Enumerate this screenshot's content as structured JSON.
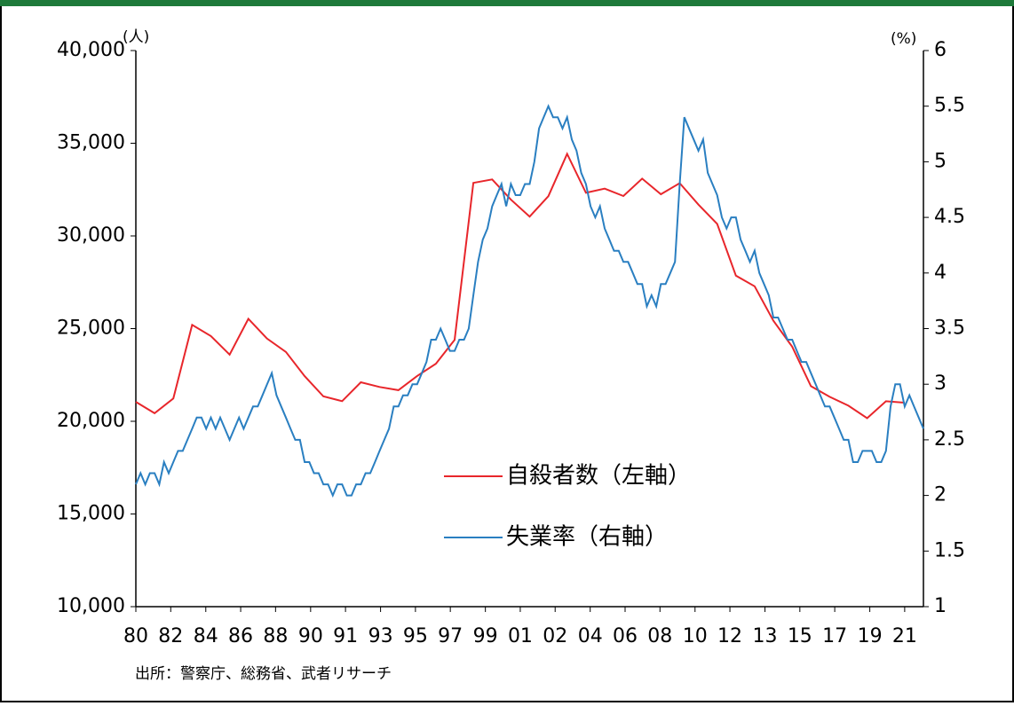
{
  "chart_data": {
    "type": "line",
    "y_unit": "(人)",
    "y2_unit": "(%)",
    "note": "出所：警察庁、総務省、武者リサーチ",
    "legend": "center",
    "xlim": [
      1980,
      2022
    ],
    "xticks": [
      {
        "value": 1980,
        "label": "80"
      },
      {
        "value": 1981.86,
        "label": "82"
      },
      {
        "value": 1983.73,
        "label": "84"
      },
      {
        "value": 1985.59,
        "label": "86"
      },
      {
        "value": 1987.45,
        "label": "88"
      },
      {
        "value": 1989.32,
        "label": "90"
      },
      {
        "value": 1991.18,
        "label": "91"
      },
      {
        "value": 1993.05,
        "label": "93"
      },
      {
        "value": 1994.91,
        "label": "95"
      },
      {
        "value": 1996.77,
        "label": "97"
      },
      {
        "value": 1998.64,
        "label": "99"
      },
      {
        "value": 2000.5,
        "label": "01"
      },
      {
        "value": 2002.36,
        "label": "02"
      },
      {
        "value": 2004.23,
        "label": "04"
      },
      {
        "value": 2006.09,
        "label": "06"
      },
      {
        "value": 2007.95,
        "label": "08"
      },
      {
        "value": 2009.82,
        "label": "10"
      },
      {
        "value": 2011.68,
        "label": "12"
      },
      {
        "value": 2013.55,
        "label": "13"
      },
      {
        "value": 2015.41,
        "label": "15"
      },
      {
        "value": 2017.27,
        "label": "17"
      },
      {
        "value": 2019.14,
        "label": "19"
      },
      {
        "value": 2021,
        "label": "21"
      }
    ],
    "ylim": [
      10000,
      40000
    ],
    "yticks": [
      {
        "value": 10000,
        "label": "10,000"
      },
      {
        "value": 15000,
        "label": "15,000"
      },
      {
        "value": 20000,
        "label": "20,000"
      },
      {
        "value": 25000,
        "label": "25,000"
      },
      {
        "value": 30000,
        "label": "30,000"
      },
      {
        "value": 35000,
        "label": "35,000"
      },
      {
        "value": 40000,
        "label": "40,000"
      }
    ],
    "y2lim": [
      1,
      6
    ],
    "y2ticks": [
      1,
      1.5,
      2,
      2.5,
      3,
      3.5,
      4,
      4.5,
      5,
      5.5,
      6
    ],
    "series": [
      {
        "name": "自殺者数（左軸）",
        "color": "#e8262b",
        "x": [
          1980,
          1981,
          1982,
          1983,
          1984,
          1985,
          1986,
          1987,
          1988,
          1989,
          1990,
          1991,
          1992,
          1993,
          1994,
          1995,
          1996,
          1997,
          1998,
          1999,
          2000,
          2001,
          2002,
          2003,
          2004,
          2005,
          2006,
          2007,
          2008,
          2009,
          2010,
          2011,
          2012,
          2013,
          2014,
          2015,
          2016,
          2017,
          2018,
          2019,
          2020,
          2021
        ],
        "values": [
          21048,
          20434,
          21228,
          25202,
          24596,
          23599,
          25524,
          24460,
          23742,
          22436,
          21346,
          21084,
          22104,
          21851,
          21679,
          22445,
          23104,
          24391,
          32863,
          33048,
          31957,
          31042,
          32143,
          34427,
          32325,
          32552,
          32155,
          33093,
          32249,
          32845,
          31690,
          30651,
          27858,
          27283,
          25427,
          24025,
          21897,
          21321,
          20840,
          20169,
          21081,
          21007
        ]
      },
      {
        "name": "失業率（右軸）",
        "color": "#2a7fc1",
        "axis": "y2",
        "x": [
          1980,
          1980.25,
          1980.5,
          1980.75,
          1981,
          1981.25,
          1981.5,
          1981.75,
          1982,
          1982.25,
          1982.5,
          1982.75,
          1983,
          1983.25,
          1983.5,
          1983.75,
          1984,
          1984.25,
          1984.5,
          1984.75,
          1985,
          1985.25,
          1985.5,
          1985.75,
          1986,
          1986.25,
          1986.5,
          1986.75,
          1987,
          1987.25,
          1987.5,
          1987.75,
          1988,
          1988.25,
          1988.5,
          1988.75,
          1989,
          1989.25,
          1989.5,
          1989.75,
          1990,
          1990.25,
          1990.5,
          1990.75,
          1991,
          1991.25,
          1991.5,
          1991.75,
          1992,
          1992.25,
          1992.5,
          1992.75,
          1993,
          1993.25,
          1993.5,
          1993.75,
          1994,
          1994.25,
          1994.5,
          1994.75,
          1995,
          1995.25,
          1995.5,
          1995.75,
          1996,
          1996.25,
          1996.5,
          1996.75,
          1997,
          1997.25,
          1997.5,
          1997.75,
          1998,
          1998.25,
          1998.5,
          1998.75,
          1999,
          1999.25,
          1999.5,
          1999.75,
          2000,
          2000.25,
          2000.5,
          2000.75,
          2001,
          2001.25,
          2001.5,
          2001.75,
          2002,
          2002.25,
          2002.5,
          2002.75,
          2003,
          2003.25,
          2003.5,
          2003.75,
          2004,
          2004.25,
          2004.5,
          2004.75,
          2005,
          2005.25,
          2005.5,
          2005.75,
          2006,
          2006.25,
          2006.5,
          2006.75,
          2007,
          2007.25,
          2007.5,
          2007.75,
          2008,
          2008.25,
          2008.5,
          2008.75,
          2009,
          2009.25,
          2009.5,
          2009.75,
          2010,
          2010.25,
          2010.5,
          2010.75,
          2011,
          2011.25,
          2011.5,
          2011.75,
          2012,
          2012.25,
          2012.5,
          2012.75,
          2013,
          2013.25,
          2013.5,
          2013.75,
          2014,
          2014.25,
          2014.5,
          2014.75,
          2015,
          2015.25,
          2015.5,
          2015.75,
          2016,
          2016.25,
          2016.5,
          2016.75,
          2017,
          2017.25,
          2017.5,
          2017.75,
          2018,
          2018.25,
          2018.5,
          2018.75,
          2019,
          2019.25,
          2019.5,
          2019.75,
          2020,
          2020.25,
          2020.5,
          2020.75,
          2021,
          2021.25,
          2021.5,
          2021.75,
          2022
        ],
        "values": [
          2.1,
          2.2,
          2.1,
          2.2,
          2.2,
          2.1,
          2.3,
          2.2,
          2.3,
          2.4,
          2.4,
          2.5,
          2.6,
          2.7,
          2.7,
          2.6,
          2.7,
          2.6,
          2.7,
          2.6,
          2.5,
          2.6,
          2.7,
          2.6,
          2.7,
          2.8,
          2.8,
          2.9,
          3.0,
          3.1,
          2.9,
          2.8,
          2.7,
          2.6,
          2.5,
          2.5,
          2.3,
          2.3,
          2.2,
          2.2,
          2.1,
          2.1,
          2.0,
          2.1,
          2.1,
          2.0,
          2.0,
          2.1,
          2.1,
          2.2,
          2.2,
          2.3,
          2.4,
          2.5,
          2.6,
          2.8,
          2.8,
          2.9,
          2.9,
          3.0,
          3.0,
          3.1,
          3.2,
          3.4,
          3.4,
          3.5,
          3.4,
          3.3,
          3.3,
          3.4,
          3.4,
          3.5,
          3.8,
          4.1,
          4.3,
          4.4,
          4.6,
          4.7,
          4.8,
          4.6,
          4.8,
          4.7,
          4.7,
          4.8,
          4.8,
          5.0,
          5.3,
          5.4,
          5.5,
          5.4,
          5.4,
          5.3,
          5.4,
          5.2,
          5.1,
          4.9,
          4.8,
          4.6,
          4.5,
          4.6,
          4.4,
          4.3,
          4.2,
          4.2,
          4.1,
          4.1,
          4.0,
          3.9,
          3.9,
          3.7,
          3.8,
          3.7,
          3.9,
          3.9,
          4.0,
          4.1,
          4.8,
          5.4,
          5.3,
          5.2,
          5.1,
          5.2,
          4.9,
          4.8,
          4.7,
          4.5,
          4.4,
          4.5,
          4.5,
          4.3,
          4.2,
          4.1,
          4.2,
          4.0,
          3.9,
          3.8,
          3.6,
          3.6,
          3.5,
          3.4,
          3.4,
          3.3,
          3.2,
          3.2,
          3.1,
          3.0,
          2.9,
          2.8,
          2.8,
          2.7,
          2.6,
          2.5,
          2.5,
          2.3,
          2.3,
          2.4,
          2.4,
          2.4,
          2.3,
          2.3,
          2.4,
          2.8,
          3.0,
          3.0,
          2.8,
          2.9,
          2.8,
          2.7,
          2.6
        ]
      }
    ]
  }
}
